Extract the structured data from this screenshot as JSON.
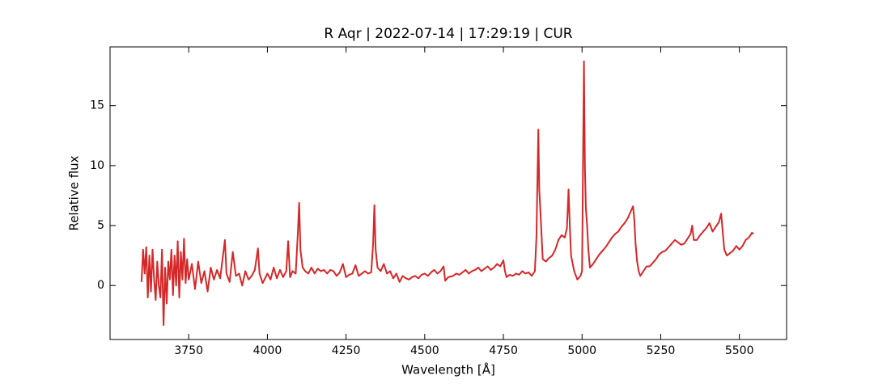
{
  "chart_data": {
    "type": "line",
    "title": "R Aqr | 2022-07-14 | 17:29:19 | CUR",
    "x_label": "Wavelength [Å]",
    "y_label": "Relative flux",
    "color": "#d62728",
    "xlim": [
      3500,
      5650
    ],
    "ylim": [
      -4.5,
      19.9
    ],
    "xticks": [
      3750,
      4000,
      4250,
      4500,
      4750,
      5000,
      5250,
      5500
    ],
    "yticks": [
      0,
      5,
      10,
      15
    ],
    "x": [
      3600,
      3605,
      3610,
      3615,
      3620,
      3625,
      3630,
      3635,
      3640,
      3645,
      3650,
      3655,
      3660,
      3665,
      3670,
      3675,
      3680,
      3685,
      3690,
      3695,
      3700,
      3705,
      3710,
      3715,
      3720,
      3725,
      3730,
      3735,
      3740,
      3745,
      3750,
      3760,
      3770,
      3780,
      3790,
      3800,
      3810,
      3820,
      3830,
      3840,
      3850,
      3865,
      3870,
      3880,
      3890,
      3900,
      3910,
      3920,
      3930,
      3940,
      3950,
      3960,
      3970,
      3975,
      3985,
      4000,
      4010,
      4020,
      4030,
      4040,
      4050,
      4060,
      4066,
      4072,
      4080,
      4090,
      4097,
      4101,
      4105,
      4112,
      4120,
      4130,
      4140,
      4150,
      4160,
      4170,
      4180,
      4190,
      4200,
      4210,
      4220,
      4230,
      4240,
      4250,
      4260,
      4270,
      4280,
      4290,
      4300,
      4310,
      4320,
      4330,
      4336,
      4340,
      4344,
      4350,
      4360,
      4370,
      4380,
      4390,
      4400,
      4410,
      4420,
      4430,
      4440,
      4450,
      4460,
      4470,
      4480,
      4490,
      4500,
      4510,
      4520,
      4530,
      4540,
      4550,
      4560,
      4565,
      4575,
      4590,
      4600,
      4610,
      4620,
      4630,
      4640,
      4650,
      4660,
      4670,
      4680,
      4690,
      4700,
      4710,
      4720,
      4730,
      4740,
      4750,
      4755,
      4760,
      4770,
      4780,
      4790,
      4800,
      4810,
      4820,
      4830,
      4840,
      4850,
      4855,
      4861,
      4864,
      4868,
      4875,
      4885,
      4895,
      4905,
      4915,
      4925,
      4935,
      4945,
      4952,
      4957,
      4961,
      4965,
      4975,
      4985,
      4995,
      5000,
      5003,
      5006,
      5009,
      5012,
      5016,
      5020,
      5025,
      5035,
      5045,
      5055,
      5065,
      5075,
      5085,
      5095,
      5105,
      5115,
      5125,
      5135,
      5145,
      5155,
      5162,
      5166,
      5170,
      5175,
      5180,
      5185,
      5195,
      5205,
      5215,
      5225,
      5235,
      5245,
      5255,
      5265,
      5275,
      5285,
      5295,
      5305,
      5315,
      5325,
      5335,
      5345,
      5350,
      5355,
      5365,
      5375,
      5385,
      5395,
      5405,
      5415,
      5425,
      5435,
      5442,
      5447,
      5452,
      5460,
      5470,
      5480,
      5490,
      5500,
      5510,
      5520,
      5530,
      5540,
      5545
    ],
    "values": [
      0.3,
      3.0,
      1.0,
      3.2,
      -1.0,
      2.5,
      -0.5,
      3.0,
      0.5,
      -1.2,
      2.0,
      0.0,
      -1.0,
      3.0,
      -3.3,
      1.5,
      -1.5,
      2.0,
      0.5,
      3.0,
      -0.8,
      2.5,
      0.0,
      3.7,
      -1.0,
      2.8,
      0.5,
      3.9,
      0.2,
      2.2,
      0.5,
      1.8,
      -0.3,
      2.0,
      0.2,
      1.2,
      -0.5,
      1.5,
      0.5,
      1.3,
      0.6,
      3.8,
      1.0,
      0.3,
      2.8,
      0.8,
      1.0,
      0.0,
      1.2,
      0.5,
      0.8,
      1.3,
      3.1,
      1.0,
      0.2,
      1.0,
      0.5,
      1.5,
      0.6,
      1.3,
      0.7,
      1.2,
      3.7,
      0.7,
      1.2,
      1.0,
      4.5,
      6.9,
      3.0,
      1.5,
      1.2,
      1.0,
      1.5,
      1.0,
      1.4,
      1.2,
      1.3,
      1.0,
      1.3,
      1.2,
      0.8,
      1.1,
      1.8,
      0.7,
      0.9,
      1.0,
      1.7,
      0.8,
      1.0,
      1.2,
      1.0,
      1.1,
      3.5,
      6.7,
      3.0,
      1.5,
      1.2,
      1.8,
      1.0,
      1.2,
      0.6,
      1.0,
      0.3,
      0.8,
      0.6,
      0.5,
      0.7,
      0.8,
      0.6,
      0.9,
      1.0,
      0.8,
      1.1,
      1.3,
      1.0,
      1.2,
      1.6,
      0.4,
      0.7,
      0.8,
      1.0,
      0.9,
      1.1,
      1.3,
      1.0,
      1.2,
      1.3,
      1.5,
      1.2,
      1.4,
      1.6,
      1.3,
      1.5,
      1.8,
      1.6,
      2.1,
      1.2,
      0.7,
      0.9,
      0.8,
      1.0,
      0.9,
      1.2,
      1.0,
      1.1,
      0.8,
      1.2,
      4.0,
      13.0,
      8.0,
      6.0,
      2.2,
      2.0,
      2.3,
      2.5,
      3.0,
      3.8,
      4.2,
      4.0,
      4.8,
      8.0,
      5.0,
      2.5,
      1.2,
      0.5,
      0.8,
      1.2,
      10.0,
      18.7,
      10.0,
      6.5,
      5.0,
      3.0,
      1.5,
      1.8,
      2.2,
      2.6,
      2.9,
      3.2,
      3.6,
      4.0,
      4.3,
      4.5,
      4.9,
      5.2,
      5.6,
      6.2,
      6.6,
      5.5,
      3.5,
      2.0,
      1.2,
      0.8,
      1.2,
      1.6,
      1.6,
      1.9,
      2.2,
      2.6,
      2.8,
      2.9,
      3.2,
      3.5,
      3.8,
      3.6,
      3.4,
      3.5,
      3.9,
      4.3,
      5.0,
      3.8,
      3.8,
      4.2,
      4.5,
      4.8,
      5.2,
      4.5,
      4.9,
      5.3,
      6.0,
      4.5,
      3.0,
      2.5,
      2.7,
      2.9,
      3.3,
      3.0,
      3.3,
      3.8,
      4.0,
      4.4,
      4.3
    ]
  }
}
